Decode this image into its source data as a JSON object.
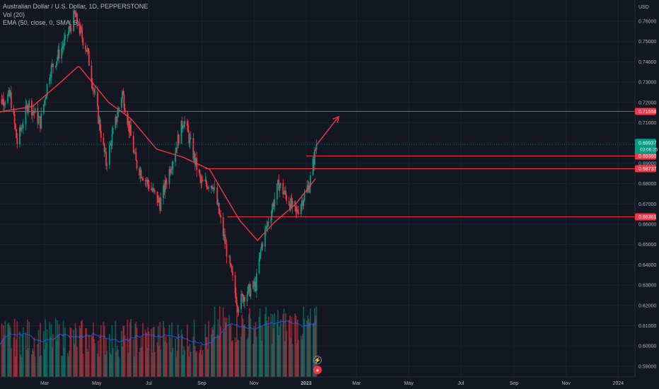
{
  "legend": {
    "symbol": "Australian Dollar / U.S. Dollar, 1D, PEPPERSTONE",
    "vol": "Vol (20)",
    "ema": "EMA (50, close, 0, SMA, 5)"
  },
  "chart_data": {
    "type": "candlestick",
    "symbol": "AUDUSD",
    "interval": "1D",
    "currency": "USD",
    "ylim": [
      0.5855,
      0.7705
    ],
    "y_ticks": [
      "0.76000",
      "0.75000",
      "0.74000",
      "0.73000",
      "0.72000",
      "0.71000",
      "0.70000",
      "0.69000",
      "0.68000",
      "0.67000",
      "0.66000",
      "0.65000",
      "0.64000",
      "0.63000",
      "0.62000",
      "0.61000",
      "0.60000",
      "0.59000"
    ],
    "x_ticks": [
      "Mar",
      "May",
      "Jul",
      "Sep",
      "Nov",
      "2023",
      "Mar",
      "May",
      "Jul",
      "Sep",
      "Nov",
      "2024"
    ],
    "price_path": [
      [
        "2022-01-03",
        0.72
      ],
      [
        "2022-01-20",
        0.723
      ],
      [
        "2022-01-28",
        0.7
      ],
      [
        "2022-02-10",
        0.72
      ],
      [
        "2022-02-24",
        0.71
      ],
      [
        "2022-03-07",
        0.735
      ],
      [
        "2022-03-25",
        0.75
      ],
      [
        "2022-04-05",
        0.763
      ],
      [
        "2022-04-20",
        0.745
      ],
      [
        "2022-05-12",
        0.69
      ],
      [
        "2022-05-31",
        0.725
      ],
      [
        "2022-06-16",
        0.69
      ],
      [
        "2022-07-14",
        0.67
      ],
      [
        "2022-08-11",
        0.712
      ],
      [
        "2022-08-31",
        0.68
      ],
      [
        "2022-09-14",
        0.68
      ],
      [
        "2022-10-13",
        0.62
      ],
      [
        "2022-10-20",
        0.625
      ],
      [
        "2022-11-03",
        0.63
      ],
      [
        "2022-11-10",
        0.65
      ],
      [
        "2022-11-30",
        0.68
      ],
      [
        "2022-12-20",
        0.665
      ],
      [
        "2023-01-05",
        0.68
      ],
      [
        "2023-01-13",
        0.6993
      ]
    ],
    "ema_path": [
      [
        "2022-01-03",
        0.715
      ],
      [
        "2022-02-15",
        0.718
      ],
      [
        "2022-03-20",
        0.73
      ],
      [
        "2022-04-10",
        0.738
      ],
      [
        "2022-05-15",
        0.72
      ],
      [
        "2022-06-10",
        0.712
      ],
      [
        "2022-07-10",
        0.697
      ],
      [
        "2022-08-10",
        0.693
      ],
      [
        "2022-09-10",
        0.687
      ],
      [
        "2022-10-15",
        0.662
      ],
      [
        "2022-11-05",
        0.652
      ],
      [
        "2022-11-25",
        0.661
      ],
      [
        "2022-12-20",
        0.67
      ],
      [
        "2023-01-13",
        0.683
      ]
    ],
    "volume_avg": 20,
    "hlines": [
      {
        "price": 0.71558,
        "label": "0.71558",
        "start": "2022-01-01",
        "color": "#f23645"
      },
      {
        "price": 0.6936,
        "label": "0.69360",
        "start": "2023-01-01",
        "color": "#f23645"
      },
      {
        "price": 0.68737,
        "label": "0.68737",
        "start": "2022-09-05",
        "color": "#f23645"
      },
      {
        "price": 0.66361,
        "label": "0.66361",
        "start": "2022-10-01",
        "color": "#f23645"
      }
    ],
    "arrow": [
      [
        "2023-01-13",
        0.699
      ],
      [
        "2023-02-08",
        0.713
      ]
    ],
    "last_price": {
      "label": "0.69937",
      "countdown": "03:06:25",
      "color": "#089981"
    },
    "colors": {
      "up": "#089981",
      "down": "#f23645",
      "ema": "#f23645",
      "vol_avg": "#2962ff",
      "bg": "#131722",
      "grid": "#1e222d",
      "axis_text": "#b2b5be"
    }
  }
}
